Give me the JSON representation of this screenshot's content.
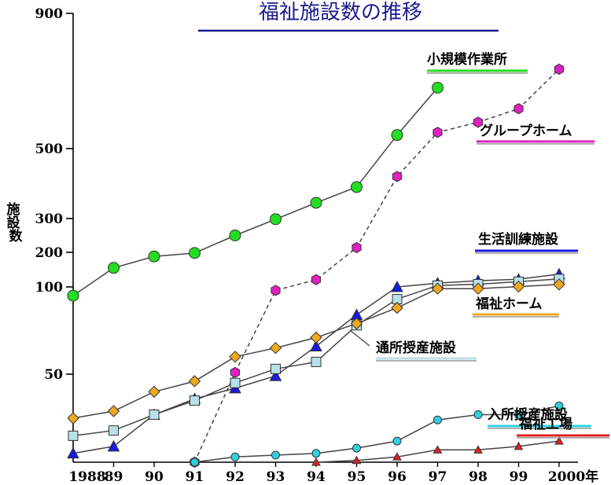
{
  "chart_data": {
    "type": "line",
    "title": "福祉施設数の推移",
    "ylabel": "施設数",
    "x": [
      "1988",
      "89",
      "90",
      "91",
      "92",
      "93",
      "94",
      "95",
      "96",
      "97",
      "98",
      "99",
      "2000年"
    ],
    "y_ticks": [
      "900",
      "500",
      "300",
      "200",
      "100",
      "50"
    ],
    "series": [
      {
        "name": "小規模作業所",
        "color": "#22dd22",
        "marker": "circle",
        "dash": false,
        "values": [
          95,
          155,
          188,
          198,
          250,
          298,
          345,
          390,
          540,
          680,
          null,
          null,
          null
        ]
      },
      {
        "name": "グループホーム",
        "color": "#e020c0",
        "marker": "hexagon",
        "dash": true,
        "values": [
          null,
          null,
          null,
          0,
          51,
          98,
          121,
          214,
          420,
          548,
          578,
          618,
          735
        ]
      },
      {
        "name": "生活訓練施設",
        "color": "#1a1ae0",
        "marker": "triangle",
        "dash": false,
        "values": [
          5,
          9,
          27,
          36,
          42,
          49,
          66,
          84,
          100,
          111,
          118,
          122,
          137
        ]
      },
      {
        "name": "通所授産施設",
        "color": "#b8e0e8",
        "marker": "square",
        "dash": false,
        "values": [
          15,
          18,
          27,
          35,
          45,
          53,
          57,
          78,
          93,
          104,
          108,
          115,
          123
        ]
      },
      {
        "name": "福祉ホーム",
        "color": "#f0a820",
        "marker": "diamond",
        "dash": false,
        "values": [
          25,
          29,
          40,
          46,
          60,
          65,
          71,
          79,
          88,
          99,
          99,
          101,
          107
        ]
      },
      {
        "name": "入所授産施設",
        "color": "#30d0e0",
        "marker": "circle-small",
        "dash": false,
        "values": [
          null,
          null,
          null,
          0,
          3,
          4,
          5,
          8,
          12,
          24,
          27,
          27,
          32
        ]
      },
      {
        "name": "福祉工場",
        "color": "#e02020",
        "marker": "triangle-small",
        "dash": false,
        "values": [
          null,
          null,
          null,
          null,
          null,
          null,
          0,
          1,
          3,
          7,
          7,
          9,
          12
        ]
      }
    ]
  }
}
